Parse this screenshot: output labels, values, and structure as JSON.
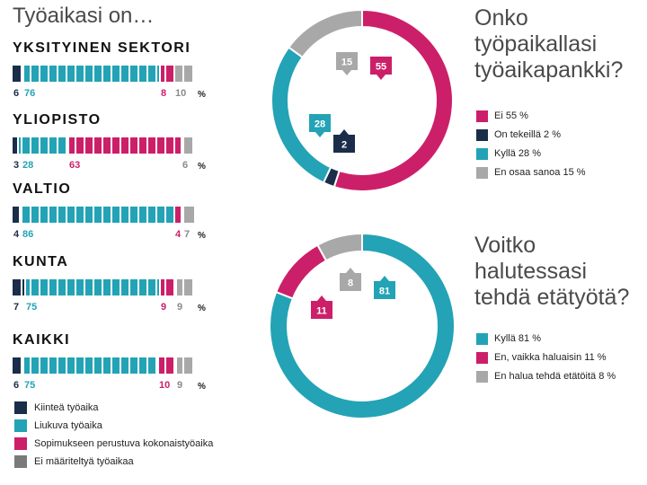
{
  "title": "Työaikasi on…",
  "percent_sign": "%",
  "colors": {
    "kiintea": "#1a2e4a",
    "liukuva": "#23a3b5",
    "sopimus": "#cc1f69",
    "ei_maaritelty": "#a8a8a8"
  },
  "chart_data": [
    {
      "type": "bar",
      "stacked": true,
      "title": "Työaikasi on…",
      "categories": [
        "YKSITYINEN SEKTORI",
        "YLIOPISTO",
        "VALTIO",
        "KUNTA",
        "KAIKKI"
      ],
      "series": [
        {
          "name": "Kiinteä työaika",
          "color": "#1a2e4a",
          "values": [
            6,
            3,
            4,
            7,
            6
          ]
        },
        {
          "name": "Liukuva työaika",
          "color": "#23a3b5",
          "values": [
            76,
            28,
            86,
            75,
            75
          ]
        },
        {
          "name": "Sopimukseen perustuva kokonaistyöaika",
          "color": "#cc1f69",
          "values": [
            8,
            63,
            4,
            9,
            10
          ]
        },
        {
          "name": "Ei määriteltyä työaikaa",
          "color": "#a8a8a8",
          "values": [
            10,
            6,
            7,
            9,
            9
          ]
        }
      ]
    },
    {
      "type": "pie",
      "donut": true,
      "title": "Onko työpaikallasi työaikapankki?",
      "slices": [
        {
          "name": "Ei",
          "value": 55,
          "label": "55",
          "legend": "Ei 55 %",
          "color": "#cc1f69"
        },
        {
          "name": "On tekeillä",
          "value": 2,
          "label": "2",
          "legend": "On tekeillä 2 %",
          "color": "#1a2e4a"
        },
        {
          "name": "Kyllä",
          "value": 28,
          "label": "28",
          "legend": "Kyllä 28 %",
          "color": "#23a3b5"
        },
        {
          "name": "En osaa sanoa",
          "value": 15,
          "label": "15",
          "legend": "En osaa sanoa 15 %",
          "color": "#a8a8a8"
        }
      ]
    },
    {
      "type": "pie",
      "donut": true,
      "title": "Voitko halutessasi tehdä etätyötä?",
      "slices": [
        {
          "name": "Kyllä",
          "value": 81,
          "label": "81",
          "legend": "Kyllä 81 %",
          "color": "#23a3b5"
        },
        {
          "name": "En, vaikka haluaisin",
          "value": 11,
          "label": "11",
          "legend": "En, vaikka haluaisin 11 %",
          "color": "#cc1f69"
        },
        {
          "name": "En halua tehdä etätöitä",
          "value": 8,
          "label": "8",
          "legend": "En halua tehdä etätöitä 8 %",
          "color": "#a8a8a8"
        }
      ]
    }
  ]
}
